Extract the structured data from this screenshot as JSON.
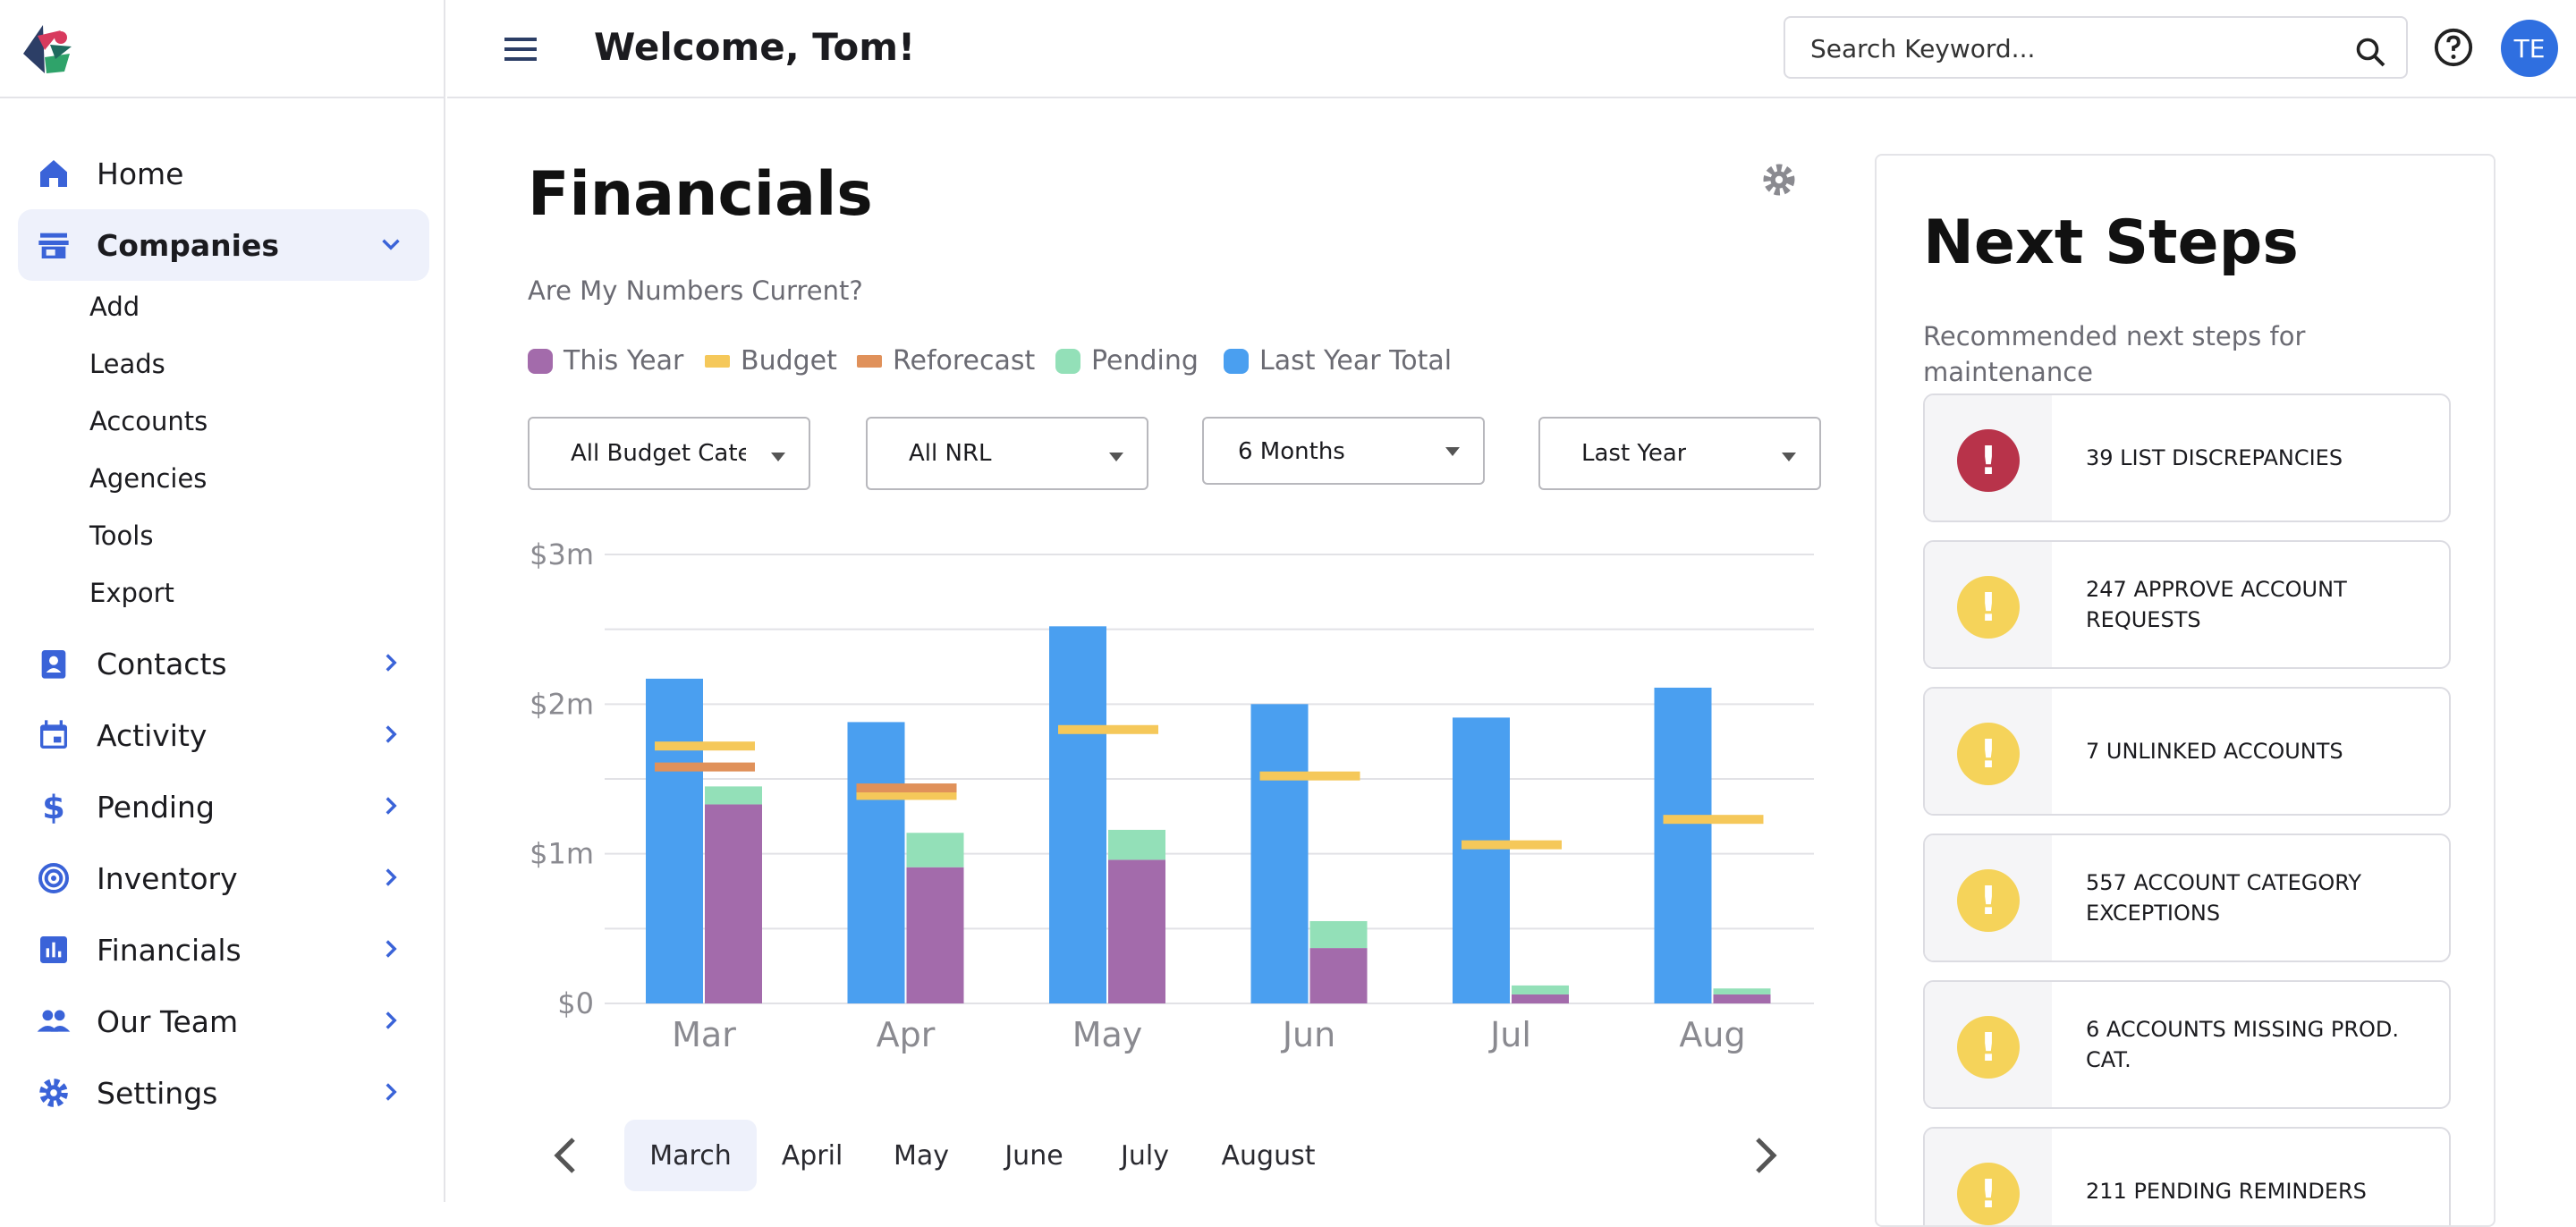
{
  "header": {
    "welcome": "Welcome, Tom!",
    "search_placeholder": "Search Keyword...",
    "avatar_initials": "TE"
  },
  "sidebar": {
    "items": [
      {
        "label": "Home",
        "icon": "home-icon"
      },
      {
        "label": "Companies",
        "icon": "store-icon",
        "expanded": true
      },
      {
        "label": "Contacts",
        "icon": "contact-card-icon"
      },
      {
        "label": "Activity",
        "icon": "calendar-icon"
      },
      {
        "label": "Pending",
        "icon": "dollar-icon"
      },
      {
        "label": "Inventory",
        "icon": "target-icon"
      },
      {
        "label": "Financials",
        "icon": "bar-chart-icon"
      },
      {
        "label": "Our Team",
        "icon": "people-icon"
      },
      {
        "label": "Settings",
        "icon": "gear-icon"
      }
    ],
    "companies_sub": [
      "Add",
      "Leads",
      "Accounts",
      "Agencies",
      "Tools",
      "Export"
    ]
  },
  "main": {
    "title": "Financials",
    "subtitle": "Are My Numbers Current?",
    "legend": [
      {
        "label": "This Year",
        "color": "#a36bab"
      },
      {
        "label": "Budget",
        "color": "#f5c85a"
      },
      {
        "label": "Reforecast",
        "color": "#e0915a"
      },
      {
        "label": "Pending",
        "color": "#93e0b8"
      },
      {
        "label": "Last Year Total",
        "color": "#4a9ff0"
      }
    ],
    "filters": [
      "All Budget Categ",
      "All NRL",
      "6 Months",
      "Last Year"
    ],
    "months": [
      "March",
      "April",
      "May",
      "June",
      "July",
      "August"
    ],
    "active_month": "March"
  },
  "chart_data": {
    "type": "bar",
    "categories": [
      "Mar",
      "Apr",
      "May",
      "Jun",
      "Jul",
      "Aug"
    ],
    "ytick_labels": [
      "$0",
      "$1m",
      "$2m",
      "$3m"
    ],
    "ylim": [
      0,
      3
    ],
    "series": [
      {
        "name": "Last Year Total",
        "values": [
          2.17,
          1.88,
          2.52,
          2.0,
          1.91,
          2.11
        ]
      },
      {
        "name": "This Year",
        "values": [
          1.33,
          0.91,
          0.96,
          0.37,
          0.06,
          0.06
        ]
      },
      {
        "name": "Pending",
        "values": [
          0.12,
          0.23,
          0.2,
          0.18,
          0.06,
          0.04
        ]
      },
      {
        "name": "Budget",
        "values": [
          1.72,
          1.39,
          1.83,
          1.52,
          1.06,
          1.23
        ]
      },
      {
        "name": "Reforecast",
        "values": [
          1.58,
          1.44,
          null,
          null,
          null,
          null
        ]
      }
    ],
    "grid": true
  },
  "next_steps": {
    "title": "Next Steps",
    "subtitle": "Recommended next steps for maintenance",
    "items": [
      {
        "label": "39 LIST DISCREPANCIES",
        "severity": "critical",
        "color": "#b8334a"
      },
      {
        "label": "247 APPROVE ACCOUNT REQUESTS",
        "severity": "warning",
        "color": "#f5d35a"
      },
      {
        "label": "7 UNLINKED ACCOUNTS",
        "severity": "warning",
        "color": "#f5d35a"
      },
      {
        "label": "557 ACCOUNT CATEGORY EXCEPTIONS",
        "severity": "warning",
        "color": "#f5d35a"
      },
      {
        "label": "6 ACCOUNTS MISSING PROD. CAT.",
        "severity": "warning",
        "color": "#f5d35a"
      },
      {
        "label": "211 PENDING REMINDERS",
        "severity": "warning",
        "color": "#f5d35a"
      }
    ]
  }
}
